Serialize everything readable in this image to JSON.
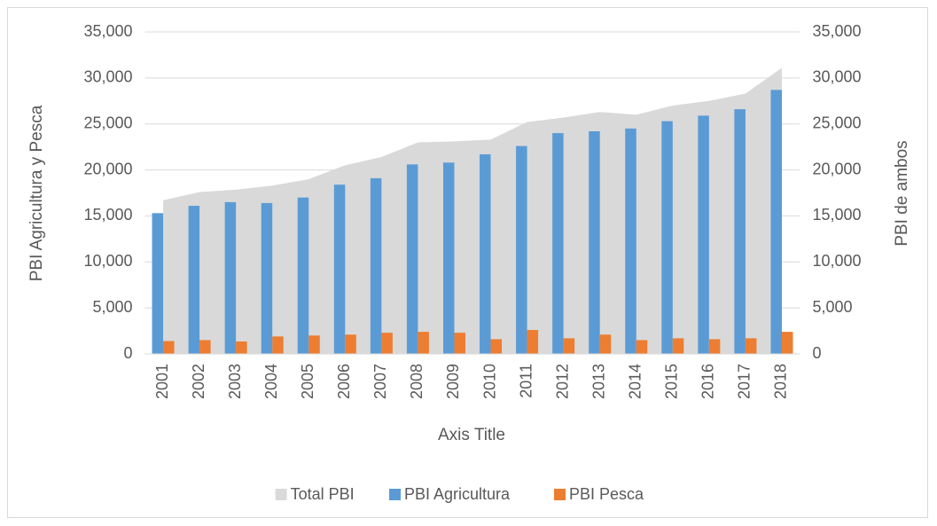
{
  "chart_data": {
    "type": "combo",
    "categories": [
      "2001",
      "2002",
      "2003",
      "2004",
      "2005",
      "2006",
      "2007",
      "2008",
      "2009",
      "2010",
      "2011",
      "2012",
      "2013",
      "2014",
      "2015",
      "2016",
      "2017",
      "2018"
    ],
    "series": [
      {
        "name": "Total PBI",
        "type": "area",
        "axis": "y2",
        "color": "#d9d9d9",
        "values": [
          16700,
          17600,
          17850,
          18300,
          19000,
          20500,
          21400,
          23000,
          23100,
          23300,
          25200,
          25700,
          26300,
          26000,
          27000,
          27500,
          28300,
          31100
        ]
      },
      {
        "name": "PBI Agricultura",
        "type": "bar",
        "color": "#5b9bd5",
        "values": [
          15300,
          16100,
          16500,
          16400,
          17000,
          18400,
          19100,
          20600,
          20800,
          21700,
          22600,
          24000,
          24200,
          24500,
          25300,
          25900,
          26600,
          28700
        ]
      },
      {
        "name": "PBI Pesca",
        "type": "bar",
        "color": "#ed7d31",
        "values": [
          1400,
          1500,
          1350,
          1900,
          2000,
          2100,
          2300,
          2400,
          2300,
          1600,
          2600,
          1700,
          2100,
          1500,
          1700,
          1600,
          1700,
          2400
        ]
      }
    ],
    "x_label": "Axis Title",
    "y_label": "PBI Agricultura y Pesca",
    "y2_label": "PBI de ambos",
    "ylim": [
      0,
      35000
    ],
    "yticks": [
      0,
      {
        "value": 5000,
        "label": "5,000"
      },
      {
        "value": 10000,
        "label": "10,000"
      },
      {
        "value": 15000,
        "label": "15,000"
      },
      {
        "value": 20000,
        "label": "20,000"
      },
      {
        "value": 25000,
        "label": "25,000"
      },
      {
        "value": 30000,
        "label": "30,000"
      },
      {
        "value": 35000,
        "label": "35,000"
      }
    ],
    "y2lim": [
      0,
      35000
    ],
    "y2ticks": [
      0,
      {
        "value": 5000,
        "label": "5,000"
      },
      {
        "value": 10000,
        "label": "10,000"
      },
      {
        "value": 15000,
        "label": "15,000"
      },
      {
        "value": 20000,
        "label": "20,000"
      },
      {
        "value": 25000,
        "label": "25,000"
      },
      {
        "value": 30000,
        "label": "30,000"
      },
      {
        "value": 35000,
        "label": "35,000"
      }
    ],
    "grid": true,
    "legend": "bottom"
  }
}
